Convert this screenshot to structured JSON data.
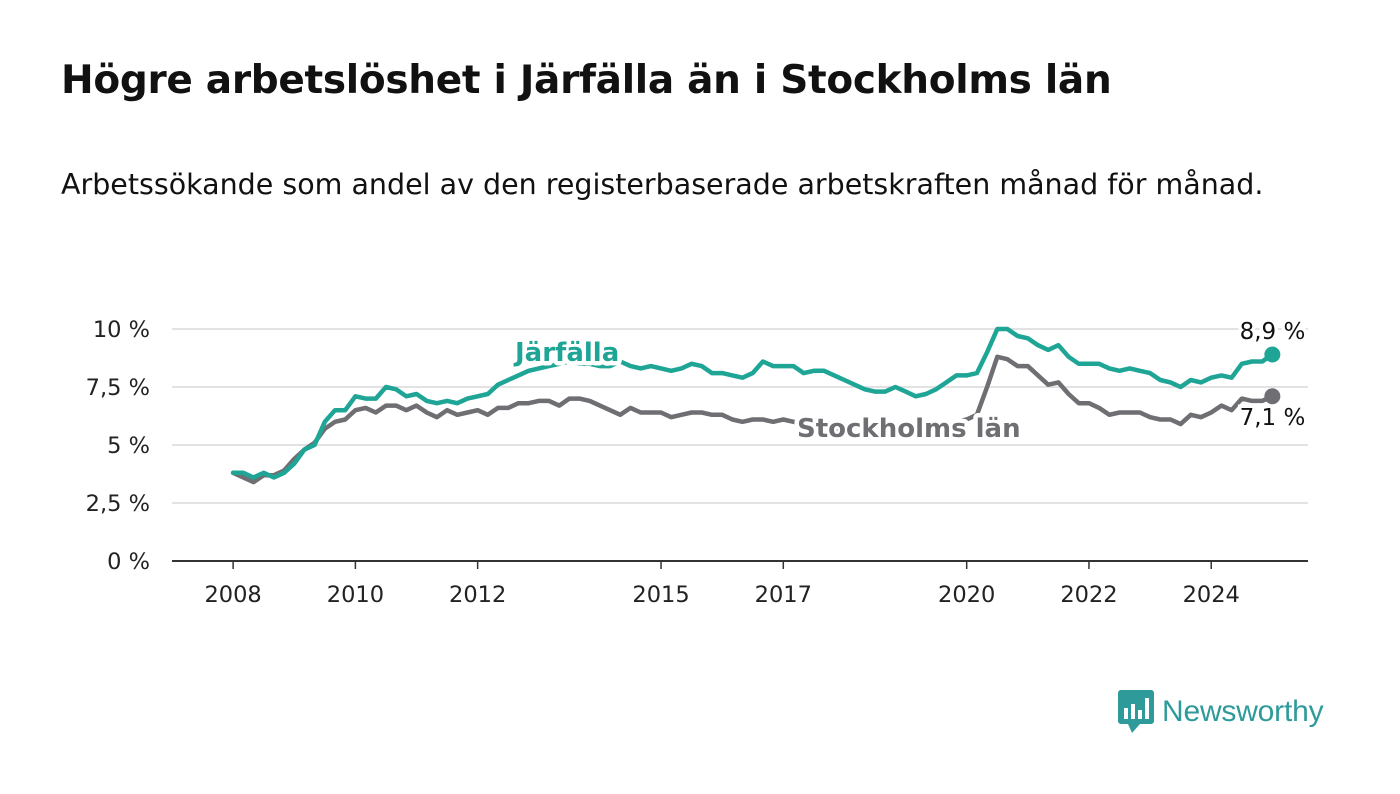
{
  "title": "Högre arbetslöshet i Järfälla än i Stockholms län",
  "subtitle": "Arbetssökande som andel av den registerbaserade arbetskraften månad för månad.",
  "brand": {
    "name": "Newsworthy",
    "color": "#2e9a9a"
  },
  "chart_data": {
    "type": "line",
    "title": "Högre arbetslöshet i Järfälla än i Stockholms län",
    "xlabel": "",
    "ylabel": "",
    "xlim": [
      "2007-01",
      "2025-08"
    ],
    "ylim": [
      0,
      10
    ],
    "grid": true,
    "y_ticks": [
      {
        "value": 0,
        "label": "0 %"
      },
      {
        "value": 2.5,
        "label": "2,5 %"
      },
      {
        "value": 5,
        "label": "5 %"
      },
      {
        "value": 7.5,
        "label": "7,5 %"
      },
      {
        "value": 10,
        "label": "10 %"
      }
    ],
    "x_ticks": [
      {
        "date": "2008-01",
        "label": "2008"
      },
      {
        "date": "2010-01",
        "label": "2010"
      },
      {
        "date": "2012-01",
        "label": "2012"
      },
      {
        "date": "2015-01",
        "label": "2015"
      },
      {
        "date": "2017-01",
        "label": "2017"
      },
      {
        "date": "2020-01",
        "label": "2020"
      },
      {
        "date": "2022-01",
        "label": "2022"
      },
      {
        "date": "2024-01",
        "label": "2024"
      }
    ],
    "series": [
      {
        "name": "Järfälla",
        "color": "#1ea596",
        "end_label": "8,9 %",
        "points": [
          [
            "2008-01",
            3.8
          ],
          [
            "2008-03",
            3.8
          ],
          [
            "2008-05",
            3.6
          ],
          [
            "2008-07",
            3.8
          ],
          [
            "2008-09",
            3.6
          ],
          [
            "2008-11",
            3.8
          ],
          [
            "2009-01",
            4.2
          ],
          [
            "2009-03",
            4.8
          ],
          [
            "2009-05",
            5.0
          ],
          [
            "2009-07",
            6.0
          ],
          [
            "2009-09",
            6.5
          ],
          [
            "2009-11",
            6.5
          ],
          [
            "2010-01",
            7.1
          ],
          [
            "2010-03",
            7.0
          ],
          [
            "2010-05",
            7.0
          ],
          [
            "2010-07",
            7.5
          ],
          [
            "2010-09",
            7.4
          ],
          [
            "2010-11",
            7.1
          ],
          [
            "2011-01",
            7.2
          ],
          [
            "2011-03",
            6.9
          ],
          [
            "2011-05",
            6.8
          ],
          [
            "2011-07",
            6.9
          ],
          [
            "2011-09",
            6.8
          ],
          [
            "2011-11",
            7.0
          ],
          [
            "2012-01",
            7.1
          ],
          [
            "2012-03",
            7.2
          ],
          [
            "2012-05",
            7.6
          ],
          [
            "2012-07",
            7.8
          ],
          [
            "2012-09",
            8.0
          ],
          [
            "2012-11",
            8.2
          ],
          [
            "2013-01",
            8.3
          ],
          [
            "2013-03",
            8.4
          ],
          [
            "2013-05",
            8.5
          ],
          [
            "2013-07",
            8.6
          ],
          [
            "2013-09",
            8.5
          ],
          [
            "2013-11",
            8.5
          ],
          [
            "2014-01",
            8.4
          ],
          [
            "2014-03",
            8.4
          ],
          [
            "2014-05",
            8.6
          ],
          [
            "2014-07",
            8.4
          ],
          [
            "2014-09",
            8.3
          ],
          [
            "2014-11",
            8.4
          ],
          [
            "2015-01",
            8.3
          ],
          [
            "2015-03",
            8.2
          ],
          [
            "2015-05",
            8.3
          ],
          [
            "2015-07",
            8.5
          ],
          [
            "2015-09",
            8.4
          ],
          [
            "2015-11",
            8.1
          ],
          [
            "2016-01",
            8.1
          ],
          [
            "2016-03",
            8.0
          ],
          [
            "2016-05",
            7.9
          ],
          [
            "2016-07",
            8.1
          ],
          [
            "2016-09",
            8.6
          ],
          [
            "2016-11",
            8.4
          ],
          [
            "2017-01",
            8.4
          ],
          [
            "2017-03",
            8.4
          ],
          [
            "2017-05",
            8.1
          ],
          [
            "2017-07",
            8.2
          ],
          [
            "2017-09",
            8.2
          ],
          [
            "2017-11",
            8.0
          ],
          [
            "2018-01",
            7.8
          ],
          [
            "2018-03",
            7.6
          ],
          [
            "2018-05",
            7.4
          ],
          [
            "2018-07",
            7.3
          ],
          [
            "2018-09",
            7.3
          ],
          [
            "2018-11",
            7.5
          ],
          [
            "2019-01",
            7.3
          ],
          [
            "2019-03",
            7.1
          ],
          [
            "2019-05",
            7.2
          ],
          [
            "2019-07",
            7.4
          ],
          [
            "2019-09",
            7.7
          ],
          [
            "2019-11",
            8.0
          ],
          [
            "2020-01",
            8.0
          ],
          [
            "2020-03",
            8.1
          ],
          [
            "2020-05",
            9.0
          ],
          [
            "2020-07",
            10.0
          ],
          [
            "2020-09",
            10.0
          ],
          [
            "2020-11",
            9.7
          ],
          [
            "2021-01",
            9.6
          ],
          [
            "2021-03",
            9.3
          ],
          [
            "2021-05",
            9.1
          ],
          [
            "2021-07",
            9.3
          ],
          [
            "2021-09",
            8.8
          ],
          [
            "2021-11",
            8.5
          ],
          [
            "2022-01",
            8.5
          ],
          [
            "2022-03",
            8.5
          ],
          [
            "2022-05",
            8.3
          ],
          [
            "2022-07",
            8.2
          ],
          [
            "2022-09",
            8.3
          ],
          [
            "2022-11",
            8.2
          ],
          [
            "2023-01",
            8.1
          ],
          [
            "2023-03",
            7.8
          ],
          [
            "2023-05",
            7.7
          ],
          [
            "2023-07",
            7.5
          ],
          [
            "2023-09",
            7.8
          ],
          [
            "2023-11",
            7.7
          ],
          [
            "2024-01",
            7.9
          ],
          [
            "2024-03",
            8.0
          ],
          [
            "2024-05",
            7.9
          ],
          [
            "2024-07",
            8.5
          ],
          [
            "2024-09",
            8.6
          ],
          [
            "2024-11",
            8.6
          ],
          [
            "2025-01",
            8.9
          ]
        ]
      },
      {
        "name": "Stockholms län",
        "color": "#6e6e73",
        "end_label": "7,1 %",
        "points": [
          [
            "2008-01",
            3.8
          ],
          [
            "2008-03",
            3.6
          ],
          [
            "2008-05",
            3.4
          ],
          [
            "2008-07",
            3.7
          ],
          [
            "2008-09",
            3.7
          ],
          [
            "2008-11",
            3.9
          ],
          [
            "2009-01",
            4.4
          ],
          [
            "2009-03",
            4.8
          ],
          [
            "2009-05",
            5.1
          ],
          [
            "2009-07",
            5.7
          ],
          [
            "2009-09",
            6.0
          ],
          [
            "2009-11",
            6.1
          ],
          [
            "2010-01",
            6.5
          ],
          [
            "2010-03",
            6.6
          ],
          [
            "2010-05",
            6.4
          ],
          [
            "2010-07",
            6.7
          ],
          [
            "2010-09",
            6.7
          ],
          [
            "2010-11",
            6.5
          ],
          [
            "2011-01",
            6.7
          ],
          [
            "2011-03",
            6.4
          ],
          [
            "2011-05",
            6.2
          ],
          [
            "2011-07",
            6.5
          ],
          [
            "2011-09",
            6.3
          ],
          [
            "2011-11",
            6.4
          ],
          [
            "2012-01",
            6.5
          ],
          [
            "2012-03",
            6.3
          ],
          [
            "2012-05",
            6.6
          ],
          [
            "2012-07",
            6.6
          ],
          [
            "2012-09",
            6.8
          ],
          [
            "2012-11",
            6.8
          ],
          [
            "2013-01",
            6.9
          ],
          [
            "2013-03",
            6.9
          ],
          [
            "2013-05",
            6.7
          ],
          [
            "2013-07",
            7.0
          ],
          [
            "2013-09",
            7.0
          ],
          [
            "2013-11",
            6.9
          ],
          [
            "2014-01",
            6.7
          ],
          [
            "2014-03",
            6.5
          ],
          [
            "2014-05",
            6.3
          ],
          [
            "2014-07",
            6.6
          ],
          [
            "2014-09",
            6.4
          ],
          [
            "2014-11",
            6.4
          ],
          [
            "2015-01",
            6.4
          ],
          [
            "2015-03",
            6.2
          ],
          [
            "2015-05",
            6.3
          ],
          [
            "2015-07",
            6.4
          ],
          [
            "2015-09",
            6.4
          ],
          [
            "2015-11",
            6.3
          ],
          [
            "2016-01",
            6.3
          ],
          [
            "2016-03",
            6.1
          ],
          [
            "2016-05",
            6.0
          ],
          [
            "2016-07",
            6.1
          ],
          [
            "2016-09",
            6.1
          ],
          [
            "2016-11",
            6.0
          ],
          [
            "2017-01",
            6.1
          ],
          [
            "2017-03",
            6.0
          ],
          [
            "2017-05",
            5.9
          ],
          [
            "2017-07",
            5.8
          ],
          [
            "2017-09",
            5.8
          ],
          [
            "2017-11",
            5.7
          ],
          [
            "2018-01",
            5.6
          ],
          [
            "2018-03",
            5.5
          ],
          [
            "2018-05",
            5.5
          ],
          [
            "2018-07",
            5.5
          ],
          [
            "2018-09",
            5.4
          ],
          [
            "2018-11",
            5.4
          ],
          [
            "2019-01",
            5.4
          ],
          [
            "2019-03",
            5.5
          ],
          [
            "2019-05",
            5.6
          ],
          [
            "2019-07",
            5.7
          ],
          [
            "2019-09",
            5.8
          ],
          [
            "2019-11",
            6.0
          ],
          [
            "2020-01",
            6.1
          ],
          [
            "2020-03",
            6.3
          ],
          [
            "2020-05",
            7.5
          ],
          [
            "2020-07",
            8.8
          ],
          [
            "2020-09",
            8.7
          ],
          [
            "2020-11",
            8.4
          ],
          [
            "2021-01",
            8.4
          ],
          [
            "2021-03",
            8.0
          ],
          [
            "2021-05",
            7.6
          ],
          [
            "2021-07",
            7.7
          ],
          [
            "2021-09",
            7.2
          ],
          [
            "2021-11",
            6.8
          ],
          [
            "2022-01",
            6.8
          ],
          [
            "2022-03",
            6.6
          ],
          [
            "2022-05",
            6.3
          ],
          [
            "2022-07",
            6.4
          ],
          [
            "2022-09",
            6.4
          ],
          [
            "2022-11",
            6.4
          ],
          [
            "2023-01",
            6.2
          ],
          [
            "2023-03",
            6.1
          ],
          [
            "2023-05",
            6.1
          ],
          [
            "2023-07",
            5.9
          ],
          [
            "2023-09",
            6.3
          ],
          [
            "2023-11",
            6.2
          ],
          [
            "2024-01",
            6.4
          ],
          [
            "2024-03",
            6.7
          ],
          [
            "2024-05",
            6.5
          ],
          [
            "2024-07",
            7.0
          ],
          [
            "2024-09",
            6.9
          ],
          [
            "2024-11",
            6.9
          ],
          [
            "2025-01",
            7.1
          ]
        ]
      }
    ]
  }
}
